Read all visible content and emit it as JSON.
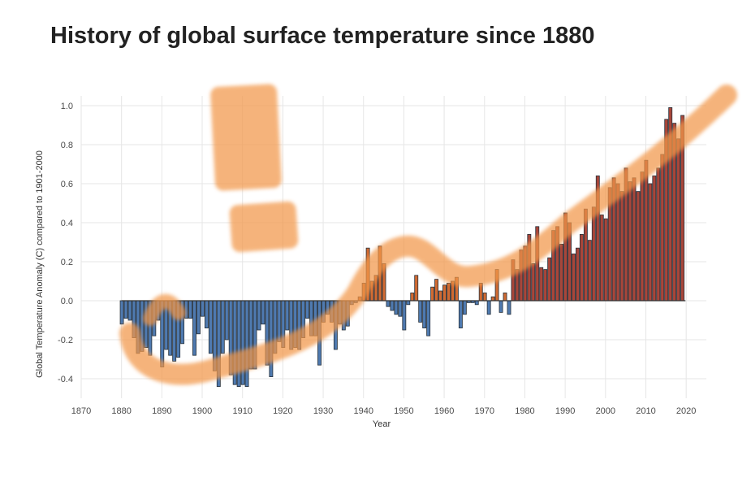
{
  "page": {
    "title": "History of global surface temperature since 1880"
  },
  "colors": {
    "negative": "#4f7ab0",
    "positive": "#d06a32",
    "recent": "#a8463a",
    "stroke": "#26303a",
    "highlight": "#f2974a",
    "grid": "#e6e6e6",
    "zero_line": "#333333"
  },
  "chart_data": {
    "type": "bar",
    "title": "History of global surface temperature since 1880",
    "xlabel": "Year",
    "ylabel": "Global Temperature Anomaly (C) compared to 1901-2000",
    "xlim": [
      1870,
      2025
    ],
    "ylim": [
      -0.5,
      1.05
    ],
    "x_ticks": [
      1870,
      1880,
      1890,
      1900,
      1910,
      1920,
      1930,
      1940,
      1950,
      1960,
      1970,
      1980,
      1990,
      2000,
      2010,
      2020
    ],
    "y_ticks": [
      -0.4,
      -0.2,
      0.0,
      0.2,
      0.4,
      0.6,
      0.8,
      1.0
    ],
    "y_tick_labels": [
      "-0.4",
      "-0.2",
      "0.0",
      "0.2",
      "0.4",
      "0.6",
      "0.8",
      "1.0"
    ],
    "grid": true,
    "annotation": "hand-drawn orange trend curve with exclamation mark",
    "recent_color_from_year": 1977,
    "x": [
      1880,
      1881,
      1882,
      1883,
      1884,
      1885,
      1886,
      1887,
      1888,
      1889,
      1890,
      1891,
      1892,
      1893,
      1894,
      1895,
      1896,
      1897,
      1898,
      1899,
      1900,
      1901,
      1902,
      1903,
      1904,
      1905,
      1906,
      1907,
      1908,
      1909,
      1910,
      1911,
      1912,
      1913,
      1914,
      1915,
      1916,
      1917,
      1918,
      1919,
      1920,
      1921,
      1922,
      1923,
      1924,
      1925,
      1926,
      1927,
      1928,
      1929,
      1930,
      1931,
      1932,
      1933,
      1934,
      1935,
      1936,
      1937,
      1938,
      1939,
      1940,
      1941,
      1942,
      1943,
      1944,
      1945,
      1946,
      1947,
      1948,
      1949,
      1950,
      1951,
      1952,
      1953,
      1954,
      1955,
      1956,
      1957,
      1958,
      1959,
      1960,
      1961,
      1962,
      1963,
      1964,
      1965,
      1966,
      1967,
      1968,
      1969,
      1970,
      1971,
      1972,
      1973,
      1974,
      1975,
      1976,
      1977,
      1978,
      1979,
      1980,
      1981,
      1982,
      1983,
      1984,
      1985,
      1986,
      1987,
      1988,
      1989,
      1990,
      1991,
      1992,
      1993,
      1994,
      1995,
      1996,
      1997,
      1998,
      1999,
      2000,
      2001,
      2002,
      2003,
      2004,
      2005,
      2006,
      2007,
      2008,
      2009,
      2010,
      2011,
      2012,
      2013,
      2014,
      2015,
      2016,
      2017,
      2018,
      2019
    ],
    "values": [
      -0.12,
      -0.09,
      -0.1,
      -0.19,
      -0.27,
      -0.26,
      -0.24,
      -0.28,
      -0.18,
      -0.1,
      -0.34,
      -0.25,
      -0.28,
      -0.31,
      -0.29,
      -0.22,
      -0.09,
      -0.09,
      -0.28,
      -0.17,
      -0.08,
      -0.14,
      -0.27,
      -0.36,
      -0.44,
      -0.27,
      -0.2,
      -0.38,
      -0.43,
      -0.44,
      -0.43,
      -0.44,
      -0.35,
      -0.35,
      -0.15,
      -0.12,
      -0.33,
      -0.39,
      -0.27,
      -0.21,
      -0.24,
      -0.15,
      -0.25,
      -0.24,
      -0.25,
      -0.19,
      -0.09,
      -0.18,
      -0.18,
      -0.33,
      -0.11,
      -0.07,
      -0.11,
      -0.25,
      -0.12,
      -0.15,
      -0.13,
      -0.02,
      -0.01,
      0.02,
      0.09,
      0.27,
      0.1,
      0.13,
      0.28,
      0.19,
      -0.03,
      -0.05,
      -0.07,
      -0.08,
      -0.15,
      -0.02,
      0.04,
      0.13,
      -0.11,
      -0.14,
      -0.18,
      0.07,
      0.11,
      0.05,
      0.08,
      0.09,
      0.1,
      0.12,
      -0.14,
      -0.07,
      -0.01,
      -0.01,
      -0.02,
      0.09,
      0.04,
      -0.07,
      0.02,
      0.16,
      -0.06,
      0.04,
      -0.07,
      0.21,
      0.16,
      0.26,
      0.28,
      0.34,
      0.19,
      0.38,
      0.17,
      0.16,
      0.22,
      0.36,
      0.38,
      0.29,
      0.45,
      0.4,
      0.24,
      0.27,
      0.34,
      0.47,
      0.31,
      0.48,
      0.64,
      0.44,
      0.42,
      0.58,
      0.63,
      0.6,
      0.56,
      0.68,
      0.61,
      0.63,
      0.56,
      0.66,
      0.72,
      0.6,
      0.64,
      0.68,
      0.75,
      0.93,
      0.99,
      0.91,
      0.83,
      0.95
    ]
  }
}
